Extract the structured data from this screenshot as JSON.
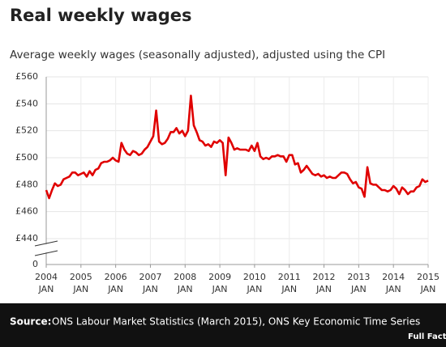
{
  "chart_data": {
    "type": "line",
    "title": "Real weekly wages",
    "subtitle": "Average weekly wages (seasonally adjusted), adjusted using the CPI",
    "color": "#e00000",
    "grid": true,
    "axis_break": true,
    "x": [
      "2004-01",
      "2004-02",
      "2004-03",
      "2004-04",
      "2004-05",
      "2004-06",
      "2004-07",
      "2004-08",
      "2004-09",
      "2004-10",
      "2004-11",
      "2004-12",
      "2005-01",
      "2005-02",
      "2005-03",
      "2005-04",
      "2005-05",
      "2005-06",
      "2005-07",
      "2005-08",
      "2005-09",
      "2005-10",
      "2005-11",
      "2005-12",
      "2006-01",
      "2006-02",
      "2006-03",
      "2006-04",
      "2006-05",
      "2006-06",
      "2006-07",
      "2006-08",
      "2006-09",
      "2006-10",
      "2006-11",
      "2006-12",
      "2007-01",
      "2007-02",
      "2007-03",
      "2007-04",
      "2007-05",
      "2007-06",
      "2007-07",
      "2007-08",
      "2007-09",
      "2007-10",
      "2007-11",
      "2007-12",
      "2008-01",
      "2008-02",
      "2008-03",
      "2008-04",
      "2008-05",
      "2008-06",
      "2008-07",
      "2008-08",
      "2008-09",
      "2008-10",
      "2008-11",
      "2008-12",
      "2009-01",
      "2009-02",
      "2009-03",
      "2009-04",
      "2009-05",
      "2009-06",
      "2009-07",
      "2009-08",
      "2009-09",
      "2009-10",
      "2009-11",
      "2009-12",
      "2010-01",
      "2010-02",
      "2010-03",
      "2010-04",
      "2010-05",
      "2010-06",
      "2010-07",
      "2010-08",
      "2010-09",
      "2010-10",
      "2010-11",
      "2010-12",
      "2011-01",
      "2011-02",
      "2011-03",
      "2011-04",
      "2011-05",
      "2011-06",
      "2011-07",
      "2011-08",
      "2011-09",
      "2011-10",
      "2011-11",
      "2011-12",
      "2012-01",
      "2012-02",
      "2012-03",
      "2012-04",
      "2012-05",
      "2012-06",
      "2012-07",
      "2012-08",
      "2012-09",
      "2012-10",
      "2012-11",
      "2012-12",
      "2013-01",
      "2013-02",
      "2013-03",
      "2013-04",
      "2013-05",
      "2013-06",
      "2013-07",
      "2013-08",
      "2013-09",
      "2013-10",
      "2013-11",
      "2013-12",
      "2014-01",
      "2014-02",
      "2014-03",
      "2014-04",
      "2014-05",
      "2014-06",
      "2014-07",
      "2014-08",
      "2014-09",
      "2014-10",
      "2014-11",
      "2014-12",
      "2015-01"
    ],
    "values": [
      476,
      470,
      476,
      481,
      479,
      480,
      484,
      485,
      486,
      489,
      489,
      487,
      488,
      489,
      486,
      490,
      487,
      491,
      492,
      496,
      497,
      497,
      498,
      500,
      498,
      497,
      511,
      506,
      503,
      502,
      505,
      504,
      502,
      503,
      506,
      508,
      512,
      516,
      535,
      512,
      510,
      511,
      514,
      519,
      519,
      522,
      518,
      520,
      516,
      520,
      546,
      524,
      519,
      513,
      512,
      509,
      510,
      508,
      512,
      511,
      513,
      511,
      487,
      515,
      511,
      506,
      507,
      506,
      506,
      506,
      505,
      509,
      505,
      511,
      501,
      499,
      500,
      499,
      501,
      501,
      502,
      501,
      501,
      497,
      502,
      502,
      495,
      496,
      489,
      491,
      494,
      491,
      488,
      487,
      488,
      486,
      487,
      485,
      486,
      485,
      485,
      487,
      489,
      489,
      488,
      484,
      481,
      482,
      478,
      477,
      471,
      493,
      481,
      480,
      480,
      478,
      476,
      476,
      475,
      476,
      479,
      477,
      473,
      478,
      476,
      473,
      475,
      475,
      478,
      479,
      484,
      482,
      483
    ],
    "xlim": [
      "2004-01",
      "2015-01"
    ],
    "xticks": [
      {
        "value": "2004-01",
        "label": [
          "2004",
          "JAN"
        ]
      },
      {
        "value": "2005-01",
        "label": [
          "2005",
          "JAN"
        ]
      },
      {
        "value": "2006-01",
        "label": [
          "2006",
          "JAN"
        ]
      },
      {
        "value": "2007-01",
        "label": [
          "2007",
          "JAN"
        ]
      },
      {
        "value": "2008-01",
        "label": [
          "2008",
          "JAN"
        ]
      },
      {
        "value": "2009-01",
        "label": [
          "2009",
          "JAN"
        ]
      },
      {
        "value": "2010-01",
        "label": [
          "2010",
          "JAN"
        ]
      },
      {
        "value": "2011-01",
        "label": [
          "2011",
          "JAN"
        ]
      },
      {
        "value": "2012-01",
        "label": [
          "2012",
          "JAN"
        ]
      },
      {
        "value": "2013-01",
        "label": [
          "2013",
          "JAN"
        ]
      },
      {
        "value": "2014-01",
        "label": [
          "2014",
          "JAN"
        ]
      },
      {
        "value": "2015-01",
        "label": [
          "2015",
          "JAN"
        ]
      }
    ],
    "ylim": [
      440,
      560
    ],
    "yticks": [
      {
        "value": 560,
        "label": "£560"
      },
      {
        "value": 540,
        "label": "£540"
      },
      {
        "value": 520,
        "label": "£520"
      },
      {
        "value": 500,
        "label": "£500"
      },
      {
        "value": 480,
        "label": "£480"
      },
      {
        "value": 460,
        "label": "£460"
      },
      {
        "value": 440,
        "label": "£440"
      },
      0
    ],
    "source_label": "Source:",
    "source": "ONS Labour Market Statistics (March 2015), ONS Key Economic Time Series",
    "logo": "Full Fact"
  }
}
